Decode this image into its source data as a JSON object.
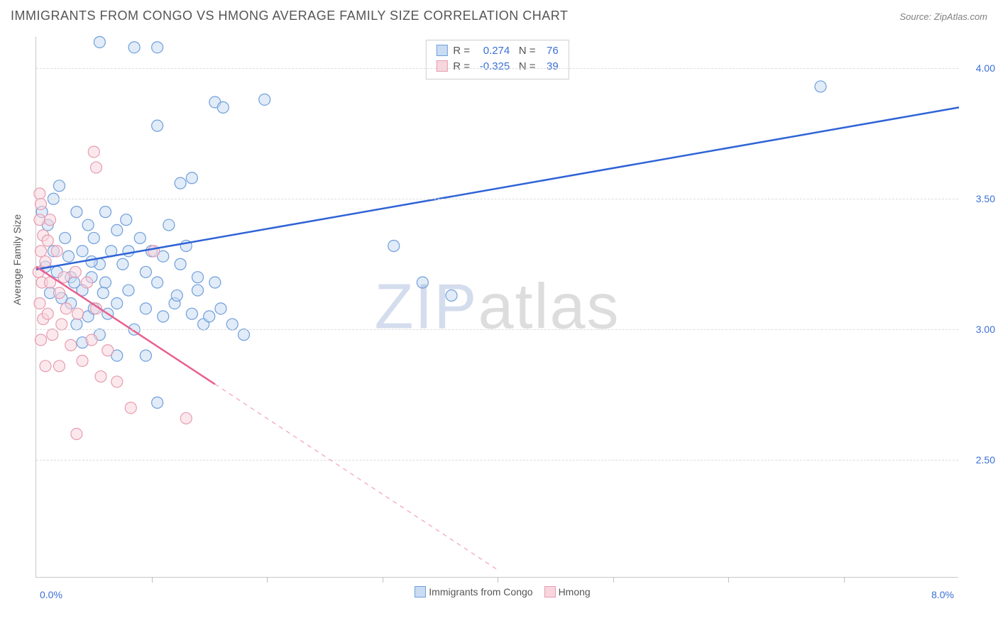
{
  "title": "IMMIGRANTS FROM CONGO VS HMONG AVERAGE FAMILY SIZE CORRELATION CHART",
  "source_label": "Source: ZipAtlas.com",
  "watermark": {
    "part1": "ZIP",
    "part2": "atlas"
  },
  "ylabel": "Average Family Size",
  "xaxis": {
    "min_label": "0.0%",
    "max_label": "8.0%",
    "min": 0,
    "max": 8.0,
    "tick_step": 1.0
  },
  "yaxis": {
    "min": 2.05,
    "max": 4.12,
    "ticks": [
      2.5,
      3.0,
      3.5,
      4.0
    ],
    "tick_labels": [
      "2.50",
      "3.00",
      "3.50",
      "4.00"
    ]
  },
  "colors": {
    "series1_fill": "#c9dcf3",
    "series1_stroke": "#6f9edb",
    "series1_line": "#2f63d6",
    "series2_fill": "#f7d6de",
    "series2_stroke": "#e79bb0",
    "series2_line": "#e95f8e",
    "axis_text": "#3b6fd6",
    "grid": "#dcdcdc",
    "title_text": "#555555"
  },
  "marker": {
    "radius": 8,
    "stroke_width": 1.2,
    "fill_opacity": 0.55
  },
  "trend_line_width": 2.5,
  "series": [
    {
      "key": "congo",
      "label": "Immigrants from Congo",
      "R": "0.274",
      "N": "76",
      "trend": {
        "x1": 0.0,
        "y1": 3.23,
        "x2": 8.0,
        "y2": 3.85
      },
      "trend_dash_after_x": null,
      "points": [
        [
          0.55,
          4.1
        ],
        [
          0.85,
          4.08
        ],
        [
          1.05,
          4.08
        ],
        [
          1.05,
          3.78
        ],
        [
          1.55,
          3.87
        ],
        [
          1.62,
          3.85
        ],
        [
          1.98,
          3.88
        ],
        [
          1.25,
          3.56
        ],
        [
          1.35,
          3.58
        ],
        [
          6.8,
          3.93
        ],
        [
          0.05,
          3.45
        ],
        [
          0.1,
          3.4
        ],
        [
          0.15,
          3.5
        ],
        [
          0.15,
          3.3
        ],
        [
          0.2,
          3.55
        ],
        [
          0.25,
          3.35
        ],
        [
          0.28,
          3.28
        ],
        [
          0.3,
          3.2
        ],
        [
          0.35,
          3.45
        ],
        [
          0.4,
          3.3
        ],
        [
          0.4,
          3.15
        ],
        [
          0.45,
          3.4
        ],
        [
          0.45,
          3.05
        ],
        [
          0.48,
          3.2
        ],
        [
          0.5,
          3.35
        ],
        [
          0.55,
          3.25
        ],
        [
          0.6,
          3.45
        ],
        [
          0.6,
          3.18
        ],
        [
          0.65,
          3.3
        ],
        [
          0.7,
          3.38
        ],
        [
          0.7,
          3.1
        ],
        [
          0.75,
          3.25
        ],
        [
          0.78,
          3.42
        ],
        [
          0.8,
          3.3
        ],
        [
          0.8,
          3.15
        ],
        [
          0.85,
          3.0
        ],
        [
          0.9,
          3.35
        ],
        [
          0.95,
          3.22
        ],
        [
          0.95,
          2.9
        ],
        [
          1.0,
          3.3
        ],
        [
          1.05,
          3.18
        ],
        [
          1.1,
          3.28
        ],
        [
          1.1,
          3.05
        ],
        [
          1.15,
          3.4
        ],
        [
          1.2,
          3.1
        ],
        [
          1.25,
          3.25
        ],
        [
          1.3,
          3.32
        ],
        [
          1.35,
          3.06
        ],
        [
          1.4,
          3.2
        ],
        [
          1.45,
          3.02
        ],
        [
          1.5,
          3.05
        ],
        [
          1.55,
          3.18
        ],
        [
          1.6,
          3.08
        ],
        [
          1.7,
          3.02
        ],
        [
          1.8,
          2.98
        ],
        [
          1.22,
          3.13
        ],
        [
          1.4,
          3.15
        ],
        [
          0.95,
          3.08
        ],
        [
          1.05,
          2.72
        ],
        [
          0.7,
          2.9
        ],
        [
          3.1,
          3.32
        ],
        [
          3.35,
          3.18
        ],
        [
          3.6,
          3.13
        ],
        [
          0.3,
          3.1
        ],
        [
          0.35,
          3.02
        ],
        [
          0.4,
          2.95
        ],
        [
          0.5,
          3.08
        ],
        [
          0.55,
          2.98
        ],
        [
          0.58,
          3.14
        ],
        [
          0.62,
          3.06
        ],
        [
          0.48,
          3.26
        ],
        [
          0.33,
          3.18
        ],
        [
          0.22,
          3.12
        ],
        [
          0.18,
          3.22
        ],
        [
          0.12,
          3.14
        ],
        [
          0.08,
          3.24
        ]
      ]
    },
    {
      "key": "hmong",
      "label": "Hmong",
      "R": "-0.325",
      "N": "39",
      "trend": {
        "x1": 0.0,
        "y1": 3.24,
        "x2": 4.0,
        "y2": 2.08
      },
      "trend_dash_after_x": 1.55,
      "points": [
        [
          0.5,
          3.68
        ],
        [
          0.52,
          3.62
        ],
        [
          0.03,
          3.52
        ],
        [
          0.04,
          3.48
        ],
        [
          0.03,
          3.42
        ],
        [
          0.06,
          3.36
        ],
        [
          0.04,
          3.3
        ],
        [
          0.02,
          3.22
        ],
        [
          0.05,
          3.18
        ],
        [
          0.03,
          3.1
        ],
        [
          0.06,
          3.04
        ],
        [
          0.04,
          2.96
        ],
        [
          0.08,
          3.26
        ],
        [
          0.1,
          3.34
        ],
        [
          0.12,
          3.18
        ],
        [
          0.1,
          3.06
        ],
        [
          0.14,
          2.98
        ],
        [
          0.08,
          2.86
        ],
        [
          0.12,
          3.42
        ],
        [
          0.18,
          3.3
        ],
        [
          0.2,
          3.14
        ],
        [
          0.22,
          3.02
        ],
        [
          0.24,
          3.2
        ],
        [
          0.26,
          3.08
        ],
        [
          0.3,
          2.94
        ],
        [
          0.34,
          3.22
        ],
        [
          0.36,
          3.06
        ],
        [
          0.4,
          2.88
        ],
        [
          0.44,
          3.18
        ],
        [
          0.48,
          2.96
        ],
        [
          0.52,
          3.08
        ],
        [
          0.56,
          2.82
        ],
        [
          0.62,
          2.92
        ],
        [
          0.7,
          2.8
        ],
        [
          0.82,
          2.7
        ],
        [
          1.02,
          3.3
        ],
        [
          1.3,
          2.66
        ],
        [
          0.35,
          2.6
        ],
        [
          0.2,
          2.86
        ]
      ]
    }
  ],
  "stats_legend_template": {
    "R_label": "R =",
    "N_label": "N ="
  },
  "bottom_legend": {
    "items": [
      {
        "label_path": "series.0.label",
        "fill": "#c9dcf3",
        "stroke": "#6f9edb"
      },
      {
        "label_path": "series.1.label",
        "fill": "#f7d6de",
        "stroke": "#e79bb0"
      }
    ]
  }
}
